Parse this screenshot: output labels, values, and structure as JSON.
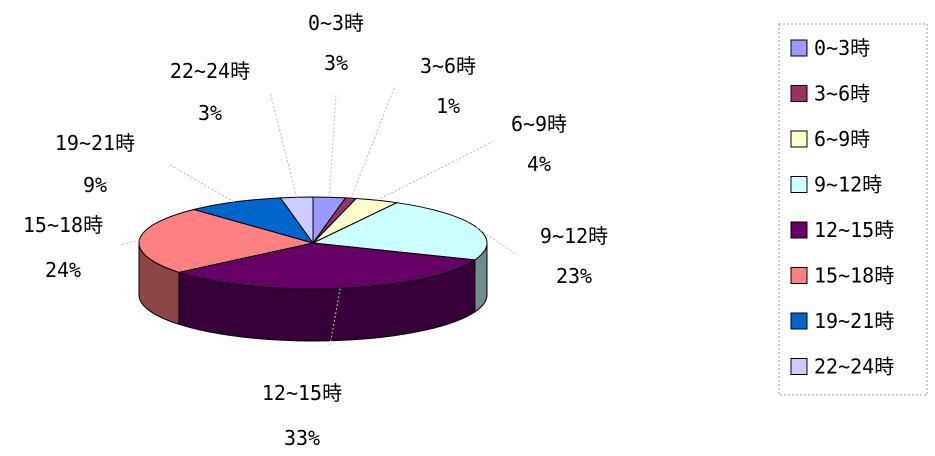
{
  "chart_data": {
    "type": "pie",
    "style": "3d",
    "title": "",
    "legend_position": "right",
    "slices": [
      {
        "label": "0~3時",
        "percent_label": "3%",
        "value": 3,
        "color": "#9999FF"
      },
      {
        "label": "3~6時",
        "percent_label": "1%",
        "value": 1,
        "color": "#993366"
      },
      {
        "label": "6~9時",
        "percent_label": "4%",
        "value": 4,
        "color": "#FFFFCC"
      },
      {
        "label": "9~12時",
        "percent_label": "23%",
        "value": 23,
        "color": "#CCFFFF"
      },
      {
        "label": "12~15時",
        "percent_label": "33%",
        "value": 33,
        "color": "#660066"
      },
      {
        "label": "15~18時",
        "percent_label": "24%",
        "value": 24,
        "color": "#FF8080"
      },
      {
        "label": "19~21時",
        "percent_label": "9%",
        "value": 9,
        "color": "#0066CC"
      },
      {
        "label": "22~24時",
        "percent_label": "3%",
        "value": 3,
        "color": "#CCCCFF"
      }
    ]
  }
}
